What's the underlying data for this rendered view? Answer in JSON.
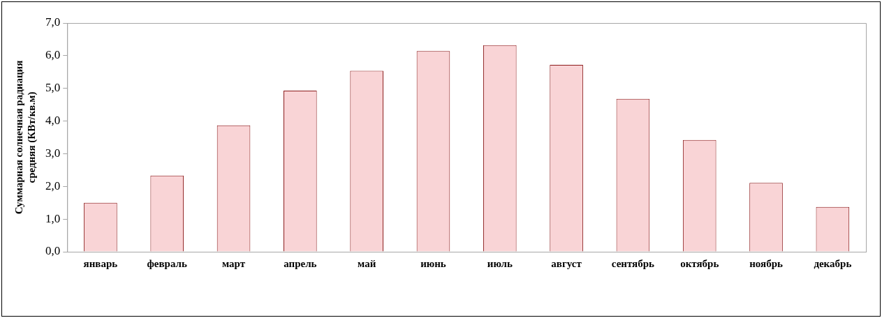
{
  "chart_data": {
    "type": "bar",
    "ylabel": "Суммарная солнечная радиация средняя (КВт/кв.м)",
    "categories": [
      "январь",
      "февраль",
      "март",
      "апрель",
      "май",
      "июнь",
      "июль",
      "август",
      "сентябрь",
      "октябрь",
      "ноябрь",
      "декабрь"
    ],
    "values": [
      1.5,
      2.33,
      3.87,
      4.93,
      5.54,
      6.14,
      6.32,
      5.72,
      4.68,
      3.42,
      2.11,
      1.37
    ],
    "color": "#f9d4d6",
    "ylim": [
      0,
      7
    ],
    "yticks": [
      {
        "value": 0,
        "label": "0,0"
      },
      {
        "value": 1,
        "label": "1,0"
      },
      {
        "value": 2,
        "label": "2,0"
      },
      {
        "value": 3,
        "label": "3,0"
      },
      {
        "value": 4,
        "label": "4,0"
      },
      {
        "value": 5,
        "label": "5,0"
      },
      {
        "value": 6,
        "label": "6,0"
      },
      {
        "value": 7,
        "label": "7,0"
      }
    ],
    "grid": false,
    "legend": false
  }
}
